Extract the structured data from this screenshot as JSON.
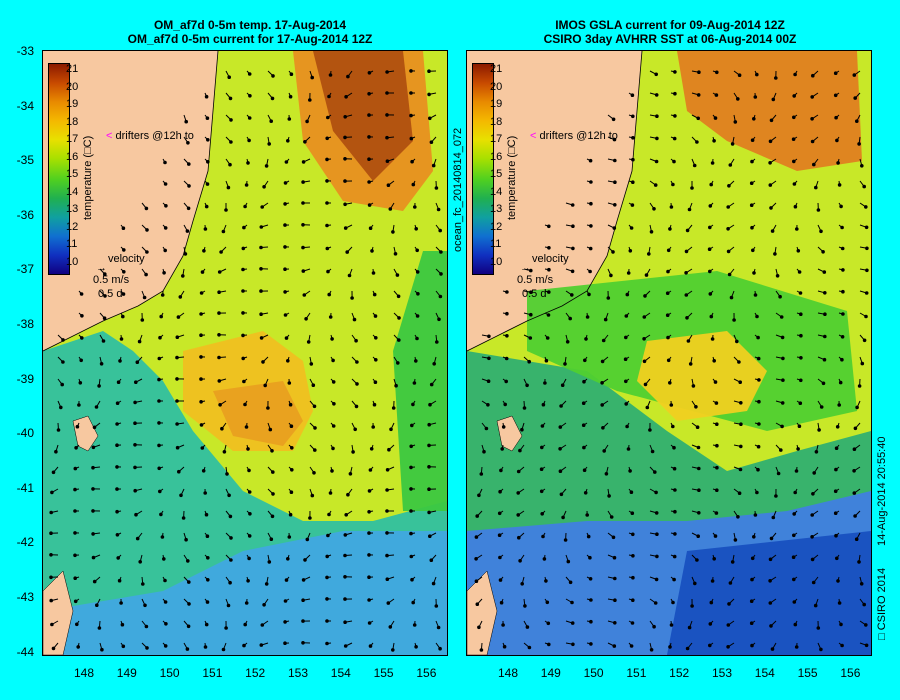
{
  "left_panel": {
    "title_line1": "OM_af7d 0-5m temp. 17-Aug-2014",
    "title_line2": "OM_af7d 0-5m current for 17-Aug-2014 12Z",
    "colorbar": {
      "labels": [
        "21",
        "20",
        "19",
        "18",
        "17",
        "16",
        "15",
        "14",
        "13",
        "12",
        "11",
        "10"
      ],
      "title": "temperature (□C)"
    },
    "drifters_label": "drifters @12h to",
    "velocity_label": "velocity",
    "velocity_speed": "0.5 m/s",
    "velocity_duration": "0.5 d"
  },
  "right_panel": {
    "title_line1": "IMOS GSLA current for 09-Aug-2014 12Z",
    "title_line2": "CSIRO 3day AVHRR SST at 06-Aug-2014 00Z",
    "colorbar": {
      "labels": [
        "21",
        "20",
        "19",
        "18",
        "17",
        "16",
        "15",
        "14",
        "13",
        "12",
        "11",
        "10"
      ],
      "title": "temperature (□C)"
    },
    "drifters_label": "drifters @12h to",
    "velocity_label": "velocity",
    "velocity_speed": "0.5 m/s",
    "velocity_duration": "0.5 d"
  },
  "middle_label": "ocean_fc_20140814_072",
  "right_label_date": "14-Aug-2014 20:55:40",
  "right_label_copyright": "□ CSIRO 2014",
  "axes": {
    "lat_labels": [
      "-33",
      "-34",
      "-35",
      "-36",
      "-37",
      "-38",
      "-39",
      "-40",
      "-41",
      "-42",
      "-43",
      "-44"
    ],
    "lon_labels": [
      "148",
      "149",
      "150",
      "151",
      "152",
      "153",
      "154",
      "155",
      "156"
    ]
  },
  "colors": {
    "background": "#00FFFF",
    "land": "#F7C8A0",
    "marker": "#FF00FF"
  }
}
